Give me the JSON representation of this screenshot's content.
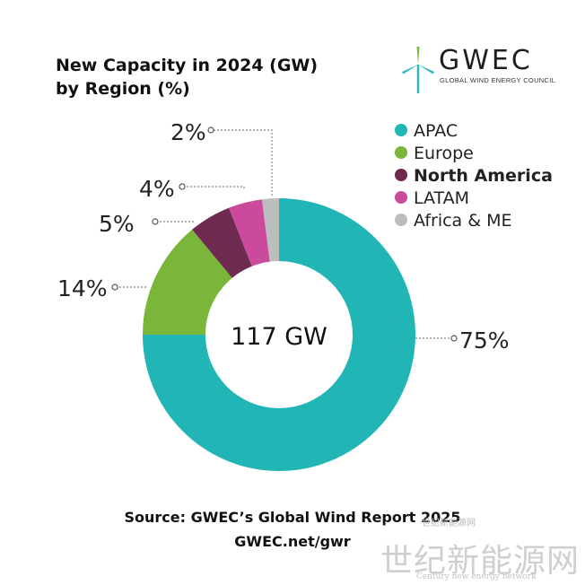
{
  "title_line1": "New Capacity in 2024 (GW)",
  "title_line2": "by Region (%)",
  "logo": {
    "name": "GWEC",
    "subtitle": "GLOBAL WIND ENERGY COUNCIL"
  },
  "source": {
    "line1": "Source: GWEC’s Global Wind Report 2025",
    "line2": "GWEC.net/gwr"
  },
  "watermark": {
    "cn_small": "世纪新能源网",
    "cn_big": "世纪新能源网",
    "en": "Century new energy network"
  },
  "colors": {
    "APAC": "#22b5b5",
    "Europe": "#7ab63a",
    "North America": "#6e2a4f",
    "LATAM": "#cc4a9c",
    "Africa & ME": "#bdbdbd",
    "leader": "#888888"
  },
  "chart_data": {
    "type": "pie",
    "donut": true,
    "center_label": "117 GW",
    "categories": [
      "APAC",
      "Europe",
      "North America",
      "LATAM",
      "Africa & ME"
    ],
    "values": [
      75,
      14,
      5,
      4,
      2
    ],
    "labels": [
      "75%",
      "14%",
      "5%",
      "4%",
      "2%"
    ],
    "legend_position": "top-right"
  }
}
